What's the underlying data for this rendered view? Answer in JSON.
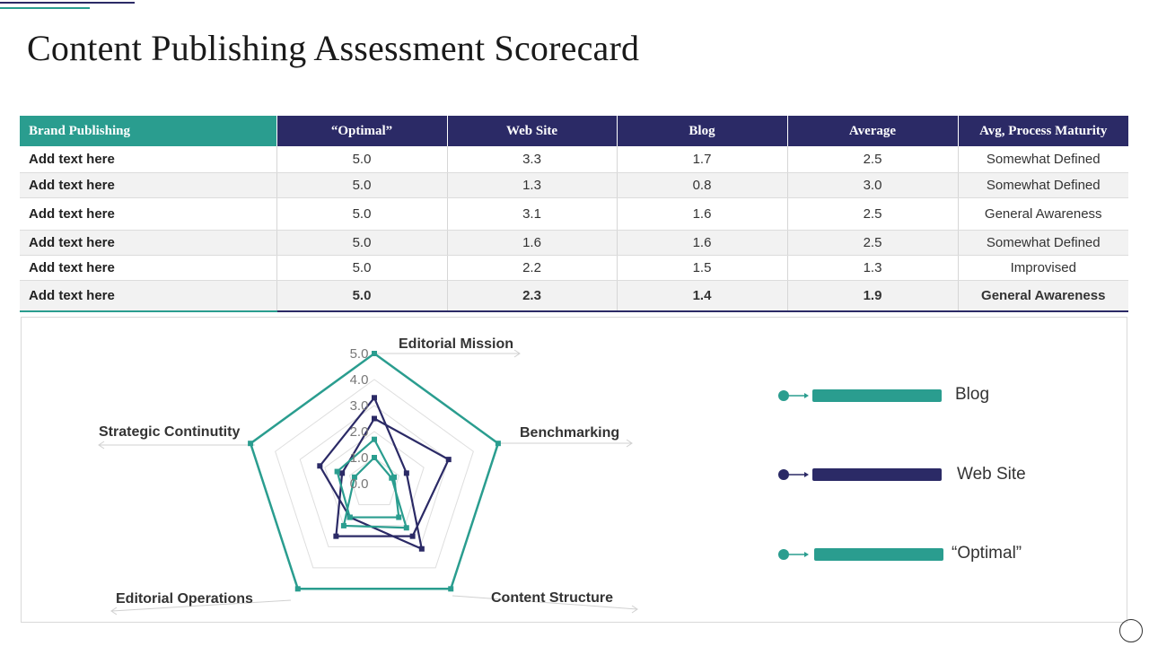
{
  "title": "Content Publishing Assessment Scorecard",
  "table": {
    "headers": [
      "Brand Publishing",
      "“Optimal”",
      "Web Site",
      "Blog",
      "Average",
      "Avg, Process Maturity"
    ],
    "rows": [
      [
        "Add  text here",
        "5.0",
        "3.3",
        "1.7",
        "2.5",
        "Somewhat Defined"
      ],
      [
        "Add  text here",
        "5.0",
        "1.3",
        "0.8",
        "3.0",
        "Somewhat Defined"
      ],
      [
        "Add  text here",
        "5.0",
        "3.1",
        "1.6",
        "2.5",
        "General Awareness"
      ],
      [
        "Add  text here",
        "5.0",
        "1.6",
        "1.6",
        "2.5",
        "Somewhat Defined"
      ],
      [
        "Add  text here",
        "5.0",
        "2.2",
        "1.5",
        "1.3",
        "Improvised"
      ],
      [
        "Add  text here",
        "5.0",
        "2.3",
        "1.4",
        "1.9",
        "General Awareness"
      ]
    ]
  },
  "colors": {
    "navy": "#2b2a66",
    "teal": "#2a9d8f"
  },
  "chart_data": {
    "type": "radar",
    "categories": [
      "Editorial Mission",
      "Benchmarking",
      "Content Structure",
      "Editorial Operations",
      "Strategic Continutity"
    ],
    "ticks": [
      "0.0",
      "1.0",
      "2.0",
      "3.0",
      "4.0",
      "5.0"
    ],
    "rlim": [
      0,
      5
    ],
    "legend_position": "right",
    "series": [
      {
        "name": "Blog",
        "values": [
          1.7,
          0.8,
          1.6,
          1.6,
          1.5
        ],
        "color": "#2a9d8f"
      },
      {
        "name": "Web Site",
        "values": [
          3.3,
          1.3,
          3.1,
          1.6,
          2.2
        ],
        "color": "#2b2a66"
      },
      {
        "name": "“Optimal”",
        "values": [
          5.0,
          5.0,
          5.0,
          5.0,
          5.0
        ],
        "color": "#2a9d8f"
      },
      {
        "values": [
          2.5,
          3.0,
          2.5,
          2.5,
          1.3
        ],
        "color": "#2b2a66"
      },
      {
        "values": [
          1.0,
          0.7,
          2.1,
          2.0,
          0.8
        ],
        "color": "#2a9d8f"
      }
    ]
  }
}
